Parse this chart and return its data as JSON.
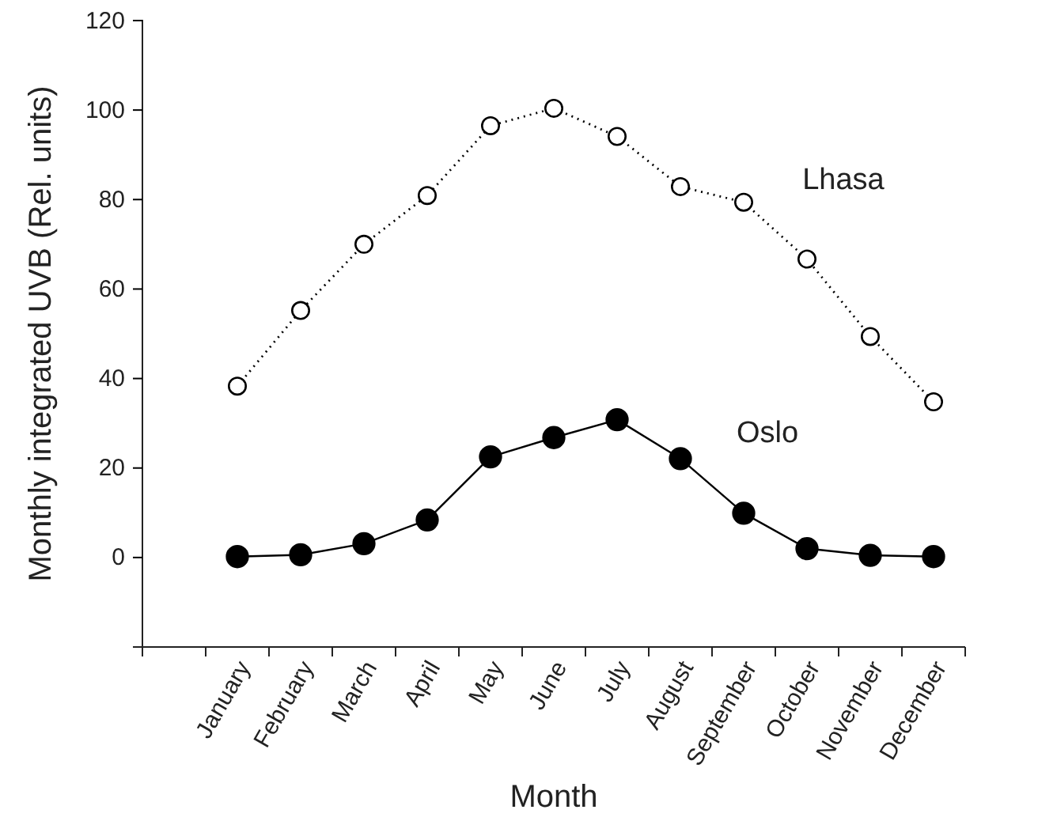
{
  "chart_data": {
    "type": "line",
    "xlabel": "Month",
    "ylabel": "Monthly integrated UVB (Rel. units)",
    "categories": [
      "January",
      "February",
      "March",
      "April",
      "May",
      "June",
      "July",
      "August",
      "September",
      "October",
      "November",
      "December"
    ],
    "series": [
      {
        "name": "Lhasa",
        "color": "#000000",
        "line_style": "dotted",
        "values": [
          38.3,
          55.2,
          70,
          80.9,
          96.5,
          100.4,
          94.1,
          82.9,
          79.4,
          66.7,
          49.4,
          34.8
        ]
      },
      {
        "name": "Oslo",
        "color": "#000000",
        "line_style": "solid",
        "values": [
          0.2,
          0.6,
          3.1,
          8.4,
          22.5,
          26.8,
          30.8,
          22.1,
          9.9,
          2.0,
          0.5,
          0.2
        ]
      }
    ],
    "ylim": [
      -20,
      120
    ],
    "yticks": [
      0,
      20,
      40,
      60,
      80,
      100,
      120
    ],
    "marker": "circle",
    "grid": false
  }
}
